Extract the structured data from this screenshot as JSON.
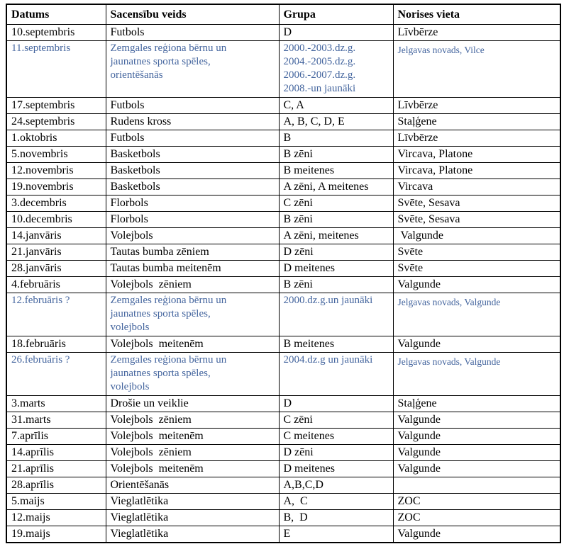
{
  "colors": {
    "link_text": "#44659E",
    "text": "#000000",
    "border": "#000000",
    "background": "#FFFFFF"
  },
  "table": {
    "columns": [
      {
        "key": "datums",
        "label": "Datums"
      },
      {
        "key": "veids",
        "label": "Sacensību veids"
      },
      {
        "key": "grupa",
        "label": "Grupa"
      },
      {
        "key": "vieta",
        "label": "Norises vieta"
      }
    ],
    "rows": [
      {
        "datums": "10.septembris",
        "veids": "Futbols",
        "grupa": "D",
        "vieta": "Līvbērze",
        "blue": false
      },
      {
        "datums": "11.septembris",
        "veids": "Zemgales reģiona bērnu un\njaunatnes sporta spēles,\norientēšanās",
        "grupa": "2000.-2003.dz.g.\n2004.-2005.dz.g.\n2006.-2007.dz.g.\n2008.-un jaunāki",
        "vieta": "Jelgavas novads, Vilce",
        "blue": true
      },
      {
        "datums": "17.septembris",
        "veids": "Futbols",
        "grupa": "C, A",
        "vieta": "Līvbērze",
        "blue": false
      },
      {
        "datums": "24.septembris",
        "veids": "Rudens kross",
        "grupa": "A, B, C, D, E",
        "vieta": "Staļģene",
        "blue": false
      },
      {
        "datums": "1.oktobris",
        "veids": "Futbols",
        "grupa": "B",
        "vieta": "Līvbērze",
        "blue": false
      },
      {
        "datums": "5.novembris",
        "veids": "Basketbols",
        "grupa": "B zēni",
        "vieta": "Vircava, Platone",
        "blue": false
      },
      {
        "datums": "12.novembris",
        "veids": "Basketbols",
        "grupa": "B meitenes",
        "vieta": "Vircava, Platone",
        "blue": false
      },
      {
        "datums": "19.novembris",
        "veids": "Basketbols",
        "grupa": "A zēni, A meitenes",
        "vieta": "Vircava",
        "blue": false
      },
      {
        "datums": "3.decembris",
        "veids": "Florbols",
        "grupa": "C zēni",
        "vieta": "Svēte, Sesava",
        "blue": false
      },
      {
        "datums": "10.decembris",
        "veids": "Florbols",
        "grupa": "B zēni",
        "vieta": "Svēte, Sesava",
        "blue": false
      },
      {
        "datums": "14.janvāris",
        "veids": "Volejbols",
        "grupa": "A zēni, meitenes",
        "vieta": " Valgunde",
        "blue": false
      },
      {
        "datums": "21.janvāris",
        "veids": "Tautas bumba zēniem",
        "grupa": "D zēni",
        "vieta": "Svēte",
        "blue": false
      },
      {
        "datums": "28.janvāris",
        "veids": "Tautas bumba meitenēm",
        "grupa": "D meitenes",
        "vieta": "Svēte",
        "blue": false
      },
      {
        "datums": "4.februāris",
        "veids": "Volejbols  zēniem",
        "grupa": "B zēni",
        "vieta": "Valgunde",
        "blue": false
      },
      {
        "datums": "12.februāris ?",
        "veids": "Zemgales reģiona bērnu un\njaunatnes sporta spēles,\nvolejbols",
        "grupa": "2000.dz.g.un jaunāki",
        "vieta": "Jelgavas novads, Valgunde",
        "blue": true
      },
      {
        "datums": "18.februāris",
        "veids": "Volejbols  meitenēm",
        "grupa": "B meitenes",
        "vieta": "Valgunde",
        "blue": false
      },
      {
        "datums": "26.februāris ?",
        "veids": "Zemgales reģiona bērnu un\njaunatnes sporta spēles,\nvolejbols",
        "grupa": "2004.dz.g un jaunāki",
        "vieta": "Jelgavas novads, Valgunde",
        "blue": true
      },
      {
        "datums": "3.marts",
        "veids": "Drošie un veiklie",
        "grupa": "D",
        "vieta": "Staļģene",
        "blue": false
      },
      {
        "datums": "31.marts",
        "veids": "Volejbols  zēniem",
        "grupa": "C zēni",
        "vieta": "Valgunde",
        "blue": false
      },
      {
        "datums": "7.aprīlis",
        "veids": "Volejbols  meitenēm",
        "grupa": "C meitenes",
        "vieta": "Valgunde",
        "blue": false
      },
      {
        "datums": "14.aprīlis",
        "veids": "Volejbols  zēniem",
        "grupa": "D zēni",
        "vieta": "Valgunde",
        "blue": false
      },
      {
        "datums": "21.aprīlis",
        "veids": "Volejbols  meitenēm",
        "grupa": "D meitenes",
        "vieta": "Valgunde",
        "blue": false
      },
      {
        "datums": "28.aprīlis",
        "veids": "Orientēšanās",
        "grupa": "A,B,C,D",
        "vieta": "",
        "blue": false
      },
      {
        "datums": "5.maijs",
        "veids": "Vieglatlētika",
        "grupa": "A,  C",
        "vieta": "ZOC",
        "blue": false
      },
      {
        "datums": "12.maijs",
        "veids": "Vieglatlētika",
        "grupa": "B,  D",
        "vieta": "ZOC",
        "blue": false
      },
      {
        "datums": "19.maijs",
        "veids": "Vieglatlētika",
        "grupa": "E",
        "vieta": "Valgunde",
        "blue": false
      }
    ]
  }
}
